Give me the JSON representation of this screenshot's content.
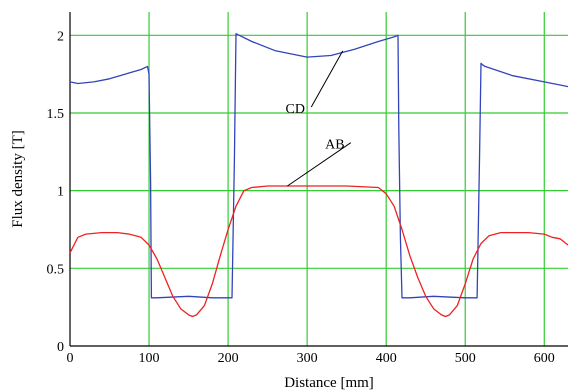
{
  "chart_data": {
    "type": "line",
    "title": "",
    "xlabel": "Distance [mm]",
    "ylabel": "Flux density [T]",
    "xlim": [
      0,
      630
    ],
    "ylim": [
      0,
      2.15
    ],
    "xticks": [
      0,
      100,
      200,
      300,
      400,
      500,
      600
    ],
    "yticks": [
      0,
      0.5,
      1,
      1.5,
      2
    ],
    "xtick_labels": [
      "0",
      "100",
      "200",
      "300",
      "400",
      "500",
      "600"
    ],
    "ytick_labels": [
      "0",
      "0.5",
      "1",
      "1.5",
      "2"
    ],
    "grid": true,
    "grid_color": "#33cc33",
    "legend": "none",
    "series": [
      {
        "name": "CD",
        "color": "#3344bb",
        "x": [
          0,
          10,
          30,
          50,
          70,
          90,
          98,
          100,
          102,
          103,
          110,
          150,
          180,
          200,
          205,
          208,
          210,
          230,
          260,
          300,
          330,
          360,
          390,
          410,
          415,
          416,
          418,
          420,
          430,
          460,
          500,
          515,
          518,
          520,
          522,
          525,
          560,
          600,
          620,
          630
        ],
        "y": [
          1.7,
          1.69,
          1.7,
          1.72,
          1.75,
          1.78,
          1.8,
          1.75,
          1.05,
          0.31,
          0.31,
          0.32,
          0.31,
          0.31,
          0.31,
          1.2,
          2.01,
          1.96,
          1.9,
          1.86,
          1.87,
          1.91,
          1.96,
          1.99,
          2.0,
          1.4,
          0.7,
          0.31,
          0.31,
          0.32,
          0.31,
          0.31,
          1.2,
          1.82,
          1.81,
          1.8,
          1.74,
          1.7,
          1.68,
          1.67
        ]
      },
      {
        "name": "AB",
        "color": "#ee2222",
        "x": [
          0,
          10,
          20,
          40,
          60,
          75,
          90,
          100,
          110,
          120,
          130,
          140,
          150,
          155,
          160,
          170,
          180,
          190,
          200,
          210,
          220,
          230,
          250,
          300,
          350,
          390,
          400,
          410,
          420,
          430,
          440,
          450,
          460,
          470,
          475,
          480,
          490,
          500,
          510,
          520,
          530,
          545,
          560,
          580,
          600,
          610,
          620,
          630
        ],
        "y": [
          0.6,
          0.7,
          0.72,
          0.73,
          0.73,
          0.72,
          0.7,
          0.65,
          0.56,
          0.44,
          0.32,
          0.24,
          0.2,
          0.19,
          0.2,
          0.26,
          0.4,
          0.58,
          0.75,
          0.9,
          1.0,
          1.02,
          1.03,
          1.03,
          1.03,
          1.02,
          0.98,
          0.9,
          0.75,
          0.58,
          0.44,
          0.32,
          0.24,
          0.2,
          0.19,
          0.2,
          0.26,
          0.4,
          0.56,
          0.66,
          0.71,
          0.73,
          0.73,
          0.73,
          0.72,
          0.7,
          0.69,
          0.65
        ]
      }
    ],
    "annotations": [
      {
        "text": "CD",
        "series": "CD",
        "point_x": 345,
        "point_y": 1.9,
        "text_x": 285,
        "text_y": 1.5
      },
      {
        "text": "AB",
        "series": "AB",
        "point_x": 275,
        "point_y": 1.03,
        "text_x": 335,
        "text_y": 1.27
      }
    ]
  }
}
